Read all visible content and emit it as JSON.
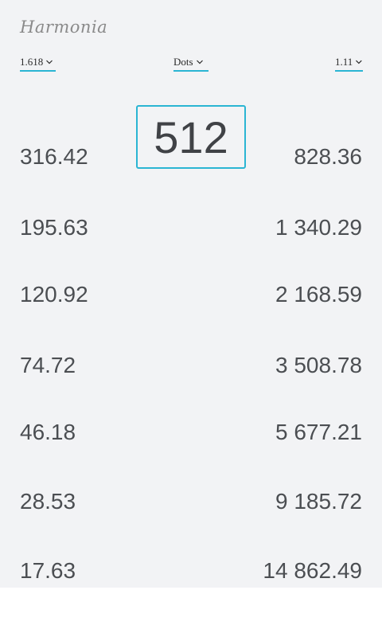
{
  "app": {
    "title": "Harmonia"
  },
  "controls": {
    "ratio": {
      "value": "1.618"
    },
    "unit": {
      "value": "Dots"
    },
    "scale": {
      "value": "1.11"
    }
  },
  "base": {
    "value": "512"
  },
  "scale_values": {
    "smaller": [
      "316.42",
      "195.63",
      "120.92",
      "74.72",
      "46.18",
      "28.53",
      "17.63"
    ],
    "larger": [
      "828.36",
      "1 340.29",
      "2 168.59",
      "3 508.78",
      "5 677.21",
      "9 185.72",
      "14 862.49"
    ]
  },
  "icons": {
    "dropdown": "chevron-down-icon"
  },
  "colors": {
    "accent": "#2bb5d3",
    "background": "#f2f3f5",
    "text": "#4b4e52"
  }
}
